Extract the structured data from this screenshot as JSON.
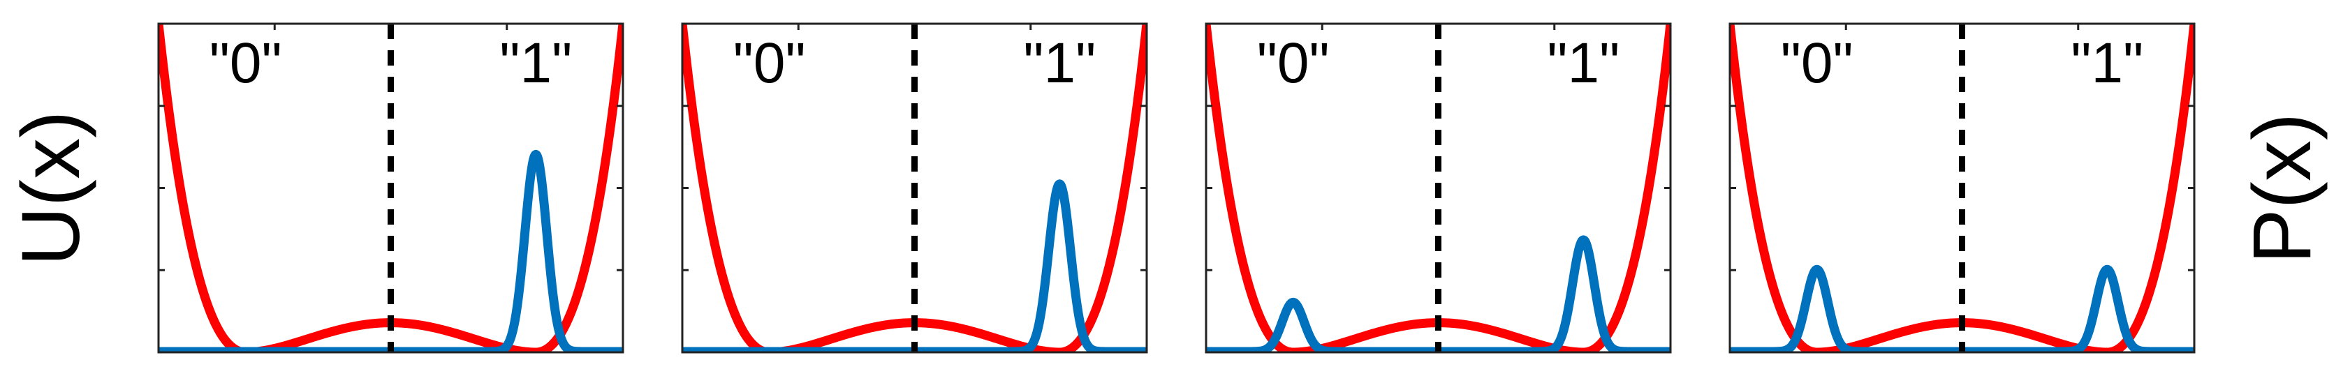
{
  "colors": {
    "potential": "#ff0000",
    "probability": "#0072bd",
    "divider": "#000000",
    "frame": "#222222"
  },
  "labels": {
    "left_axis": "U(x)",
    "right_axis": "P(x)"
  },
  "chart_data": [
    {
      "type": "line",
      "title": "",
      "xlim": [
        -1.6,
        1.6
      ],
      "ylim": [
        0,
        1
      ],
      "grid": false,
      "annotations": [
        "\"0\"",
        "\"1\""
      ],
      "divider_x": 0,
      "series": [
        {
          "role": "potential",
          "centers": [
            -1,
            1
          ],
          "barrier": 0.09,
          "edge": 1.0
        },
        {
          "role": "probability",
          "peaks": [
            {
              "x": 0,
              "height": 0.0
            },
            {
              "x": 1,
              "height": 0.6
            }
          ]
        }
      ]
    },
    {
      "type": "line",
      "title": "",
      "xlim": [
        -1.6,
        1.6
      ],
      "ylim": [
        0,
        1
      ],
      "grid": false,
      "annotations": [
        "\"0\"",
        "\"1\""
      ],
      "divider_x": 0,
      "series": [
        {
          "role": "potential",
          "centers": [
            -1,
            1
          ],
          "barrier": 0.09,
          "edge": 1.0
        },
        {
          "role": "probability",
          "peaks": [
            {
              "x": 0,
              "height": 0.0
            },
            {
              "x": 1,
              "height": 0.51
            }
          ]
        }
      ]
    },
    {
      "type": "line",
      "title": "",
      "xlim": [
        -1.6,
        1.6
      ],
      "ylim": [
        0,
        1
      ],
      "grid": false,
      "annotations": [
        "\"0\"",
        "\"1\""
      ],
      "divider_x": 0,
      "series": [
        {
          "role": "potential",
          "centers": [
            -1,
            1
          ],
          "barrier": 0.09,
          "edge": 1.0
        },
        {
          "role": "probability",
          "peaks": [
            {
              "x": -1,
              "height": 0.15
            },
            {
              "x": 1,
              "height": 0.34
            }
          ]
        }
      ]
    },
    {
      "type": "line",
      "title": "",
      "xlim": [
        -1.6,
        1.6
      ],
      "ylim": [
        0,
        1
      ],
      "grid": false,
      "annotations": [
        "\"0\"",
        "\"1\""
      ],
      "divider_x": 0,
      "series": [
        {
          "role": "potential",
          "centers": [
            -1,
            1
          ],
          "barrier": 0.09,
          "edge": 1.0
        },
        {
          "role": "probability",
          "peaks": [
            {
              "x": -1,
              "height": 0.25
            },
            {
              "x": 1,
              "height": 0.25
            }
          ]
        }
      ]
    }
  ]
}
